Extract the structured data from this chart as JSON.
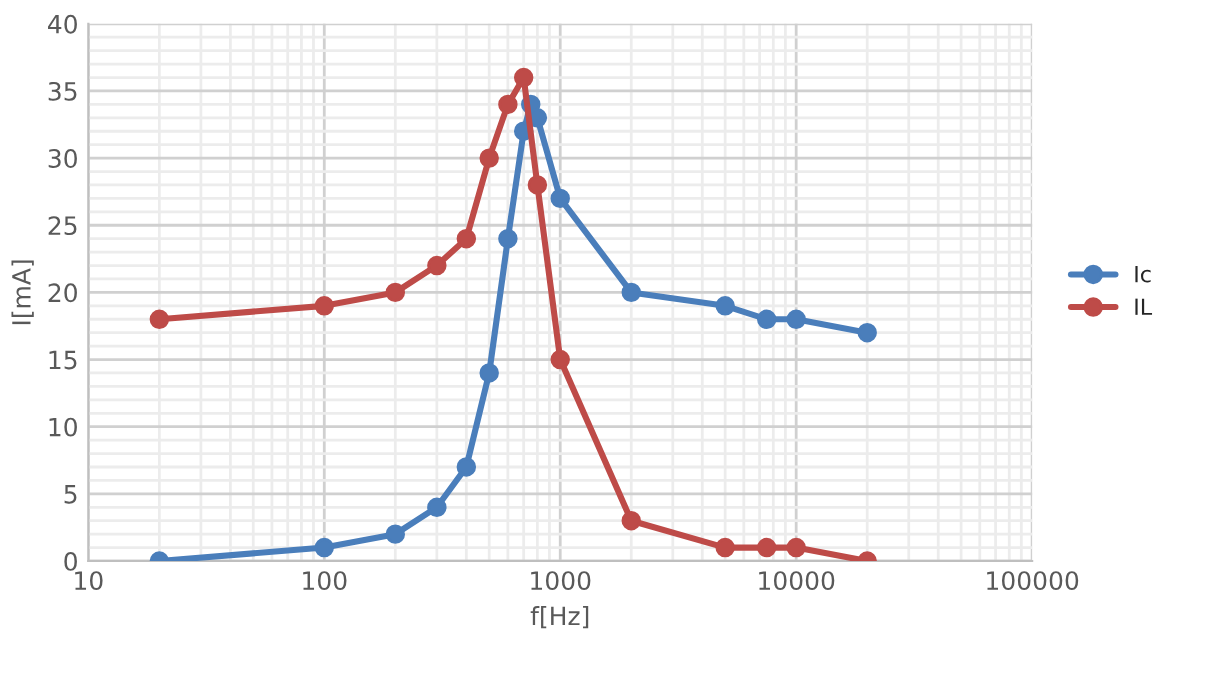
{
  "chart_data": {
    "type": "line",
    "xlabel": "f[Hz]",
    "ylabel": "I[mA]",
    "log": "x",
    "xlim": [
      10,
      100000
    ],
    "xticks": [
      10,
      100,
      1000,
      10000,
      100000
    ],
    "ylim": [
      0,
      40
    ],
    "yticks": [
      0,
      5,
      10,
      15,
      20,
      25,
      30,
      35,
      40
    ],
    "grid": true,
    "legend": "right",
    "marker": "circle",
    "line_style": "solid",
    "series": [
      {
        "name": "Ic",
        "color": "#4a7ebb",
        "x": [
          20,
          100,
          200,
          300,
          400,
          500,
          600,
          700,
          750,
          800,
          1000,
          2000,
          5000,
          7500,
          10000,
          20000
        ],
        "values": [
          0,
          1,
          2,
          4,
          7,
          14,
          24,
          32,
          34,
          33,
          27,
          20,
          19,
          18,
          18,
          17
        ]
      },
      {
        "name": "IL",
        "color": "#be4b48",
        "x": [
          20,
          100,
          200,
          300,
          400,
          500,
          600,
          700,
          800,
          1000,
          2000,
          5000,
          7500,
          10000,
          20000
        ],
        "values": [
          18,
          19,
          20,
          22,
          24,
          30,
          34,
          36,
          28,
          15,
          3,
          1,
          1,
          1,
          0
        ]
      }
    ]
  }
}
